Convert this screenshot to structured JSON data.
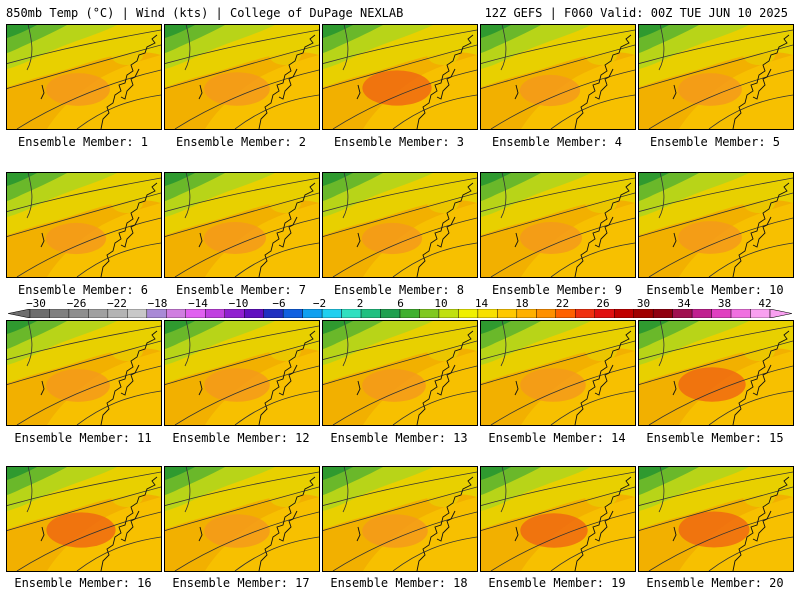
{
  "header": {
    "left": "850mb Temp (°C) | Wind (kts) | College of DuPage NEXLAB",
    "right": "12Z GEFS | F060 Valid: 00Z TUE JUN 10 2025"
  },
  "panels": [
    {
      "label": "Ensemble Member: 1",
      "warmth": 0.55
    },
    {
      "label": "Ensemble Member: 2",
      "warmth": 0.6
    },
    {
      "label": "Ensemble Member: 3",
      "warmth": 0.7
    },
    {
      "label": "Ensemble Member: 4",
      "warmth": 0.45
    },
    {
      "label": "Ensemble Member: 5",
      "warmth": 0.55
    },
    {
      "label": "Ensemble Member: 6",
      "warmth": 0.45
    },
    {
      "label": "Ensemble Member: 7",
      "warmth": 0.5
    },
    {
      "label": "Ensemble Member: 8",
      "warmth": 0.45
    },
    {
      "label": "Ensemble Member: 9",
      "warmth": 0.5
    },
    {
      "label": "Ensemble Member: 10",
      "warmth": 0.55
    },
    {
      "label": "Ensemble Member: 11",
      "warmth": 0.55
    },
    {
      "label": "Ensemble Member: 12",
      "warmth": 0.6
    },
    {
      "label": "Ensemble Member: 13",
      "warmth": 0.55
    },
    {
      "label": "Ensemble Member: 14",
      "warmth": 0.6
    },
    {
      "label": "Ensemble Member: 15",
      "warmth": 0.65
    },
    {
      "label": "Ensemble Member: 16",
      "warmth": 0.7
    },
    {
      "label": "Ensemble Member: 17",
      "warmth": 0.6
    },
    {
      "label": "Ensemble Member: 18",
      "warmth": 0.6
    },
    {
      "label": "Ensemble Member: 19",
      "warmth": 0.65
    },
    {
      "label": "Ensemble Member: 20",
      "warmth": 0.75
    }
  ],
  "colorbar": {
    "ticks": [
      "−30",
      "−26",
      "−22",
      "−18",
      "−14",
      "−10",
      "−6",
      "−2",
      "2",
      "6",
      "10",
      "14",
      "18",
      "22",
      "26",
      "30",
      "34",
      "38",
      "42"
    ],
    "colors": [
      "#6e6e6e",
      "#808080",
      "#8e8e8e",
      "#a0a0a0",
      "#b4b4b4",
      "#c8c8c8",
      "#a98ad6",
      "#d07ee0",
      "#e060f0",
      "#c040e0",
      "#9020d0",
      "#6010c0",
      "#2030c0",
      "#1060e0",
      "#10a0f0",
      "#20d0f0",
      "#30e0c0",
      "#20c080",
      "#20a050",
      "#40b030",
      "#80c820",
      "#c0e010",
      "#f0f000",
      "#f8e000",
      "#ffc800",
      "#ffb000",
      "#ff9000",
      "#ff6000",
      "#f03010",
      "#e01010",
      "#c00000",
      "#a00000",
      "#900010",
      "#a01050",
      "#c02090",
      "#e040c0",
      "#f070e0",
      "#f8a0f0"
    ]
  }
}
